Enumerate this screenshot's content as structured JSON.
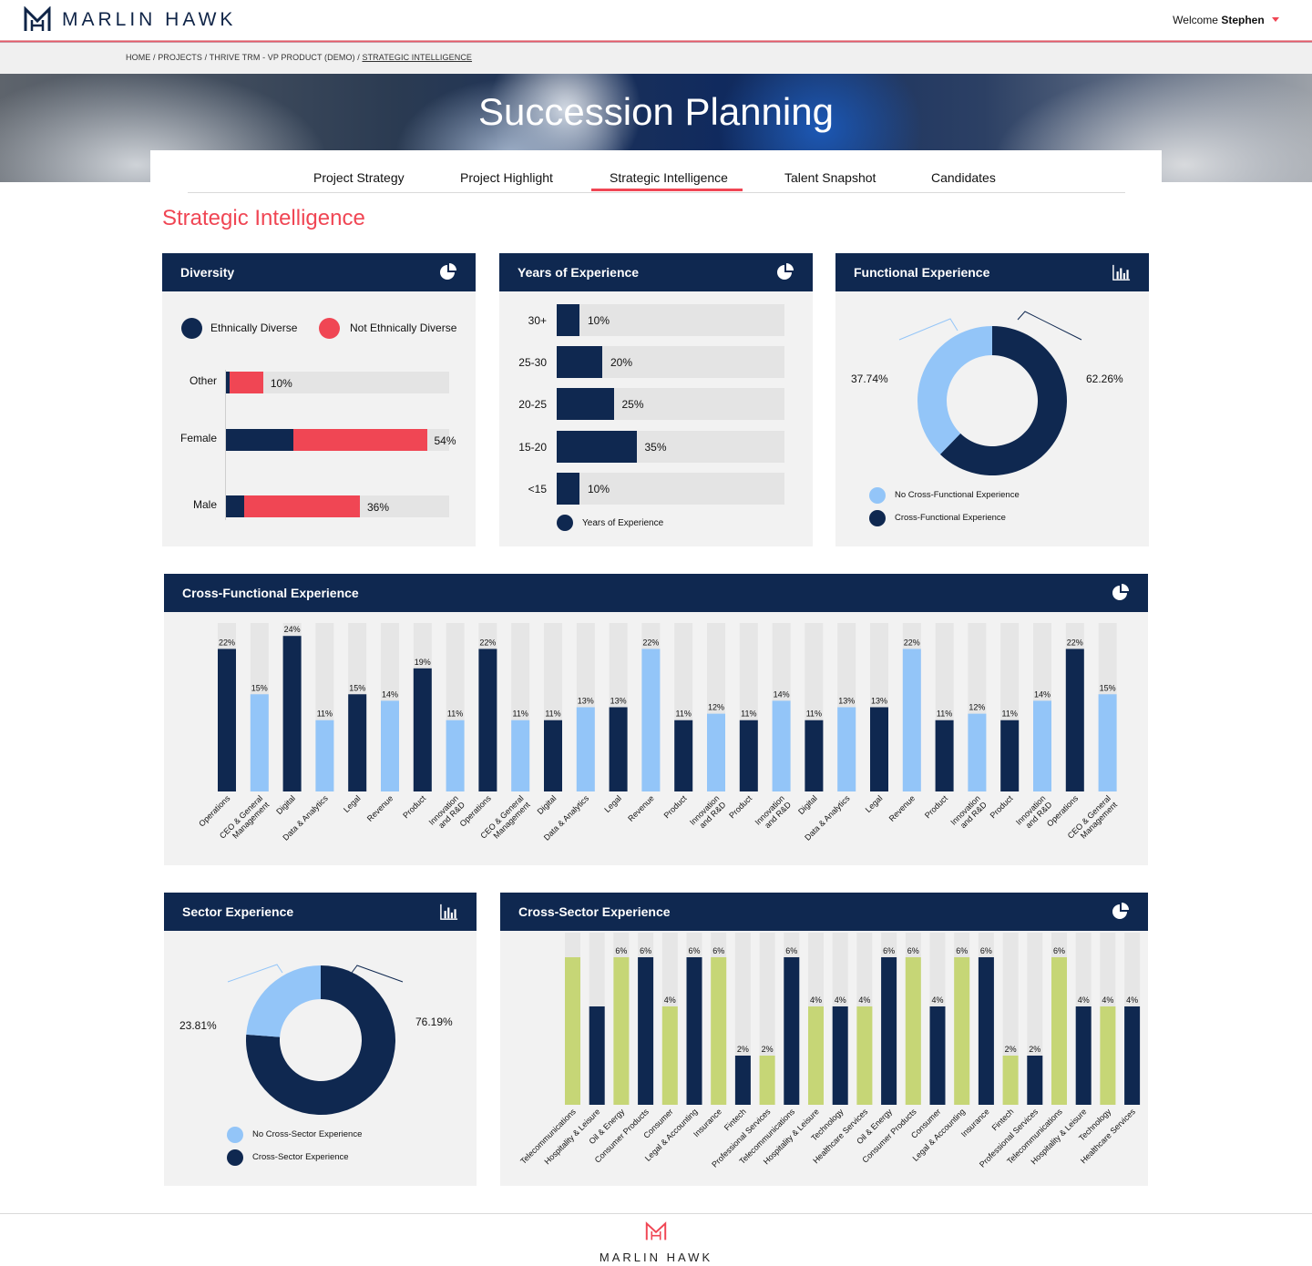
{
  "brand": {
    "name": "MARLIN HAWK",
    "footer_name": "MARLIN HAWK"
  },
  "user": {
    "welcome_prefix": "Welcome",
    "name": "Stephen"
  },
  "breadcrumb": {
    "trail": "HOME / PROJECTS / THRIVE TRM - VP PRODUCT (DEMO) / ",
    "current": "STRATEGIC INTELLIGENCE"
  },
  "hero": {
    "title": "Succession Planning"
  },
  "tabs": [
    {
      "label": "Project Strategy",
      "active": false
    },
    {
      "label": "Project Highlight",
      "active": false
    },
    {
      "label": "Strategic Intelligence",
      "active": true
    },
    {
      "label": "Talent Snapshot",
      "active": false
    },
    {
      "label": "Candidates",
      "active": false
    }
  ],
  "page_title": "Strategic Intelligence",
  "colors": {
    "navy": "#0f2850",
    "red": "#f04654",
    "light_blue": "#93c5f8",
    "green": "#c6d676",
    "track": "#e4e4e4"
  },
  "diversity": {
    "title": "Diversity",
    "icon": "pie-chart-icon",
    "legend": [
      "Ethnically Diverse",
      "Not Ethnically Diverse"
    ],
    "rows": [
      {
        "label": "Other",
        "diverse": 1,
        "not_diverse": 9,
        "total_label": "10%"
      },
      {
        "label": "Female",
        "diverse": 18,
        "not_diverse": 36,
        "total_label": "54%"
      },
      {
        "label": "Male",
        "diverse": 5,
        "not_diverse": 31,
        "total_label": "36%"
      }
    ]
  },
  "years": {
    "title": "Years of Experience",
    "icon": "pie-chart-icon",
    "legend": "Years of Experience",
    "rows": [
      {
        "label": "30+",
        "value": 10,
        "value_label": "10%"
      },
      {
        "label": "25-30",
        "value": 20,
        "value_label": "20%"
      },
      {
        "label": "20-25",
        "value": 25,
        "value_label": "25%"
      },
      {
        "label": "15-20",
        "value": 35,
        "value_label": "35%"
      },
      {
        "label": "<15",
        "value": 10,
        "value_label": "10%"
      }
    ]
  },
  "functional": {
    "title": "Functional Experience",
    "icon": "bar-chart-icon",
    "slices": [
      {
        "label": "No Cross-Functional Experience",
        "value": 37.74,
        "value_label": "37.74%"
      },
      {
        "label": "Cross-Functional Experience",
        "value": 62.26,
        "value_label": "62.26%"
      }
    ]
  },
  "cross_functional": {
    "title": "Cross-Functional Experience",
    "icon": "pie-chart-icon",
    "bars": [
      {
        "label": "Operations",
        "value": 22,
        "value_label": "22%",
        "color": "navy"
      },
      {
        "label": "CEO & General|Management",
        "value": 15,
        "value_label": "15%",
        "color": "light_blue"
      },
      {
        "label": "Digital",
        "value": 24,
        "value_label": "24%",
        "color": "navy"
      },
      {
        "label": "Data & Analytics",
        "value": 11,
        "value_label": "11%",
        "color": "light_blue"
      },
      {
        "label": "Legal",
        "value": 15,
        "value_label": "15%",
        "color": "navy"
      },
      {
        "label": "Revenue",
        "value": 14,
        "value_label": "14%",
        "color": "light_blue"
      },
      {
        "label": "Product",
        "value": 19,
        "value_label": "19%",
        "color": "navy"
      },
      {
        "label": "Innovation|and R&D",
        "value": 11,
        "value_label": "11%",
        "color": "light_blue"
      },
      {
        "label": "Operations",
        "value": 22,
        "value_label": "22%",
        "color": "navy"
      },
      {
        "label": "CEO & General|Management",
        "value": 11,
        "value_label": "11%",
        "color": "light_blue"
      },
      {
        "label": "Digital",
        "value": 11,
        "value_label": "11%",
        "color": "navy"
      },
      {
        "label": "Data & Analytics",
        "value": 13,
        "value_label": "13%",
        "color": "light_blue"
      },
      {
        "label": "Legal",
        "value": 13,
        "value_label": "13%",
        "color": "navy"
      },
      {
        "label": "Revenue",
        "value": 22,
        "value_label": "22%",
        "color": "light_blue"
      },
      {
        "label": "Product",
        "value": 11,
        "value_label": "11%",
        "color": "navy"
      },
      {
        "label": "Innovation|and R&D",
        "value": 12,
        "value_label": "12%",
        "color": "light_blue"
      },
      {
        "label": "Product",
        "value": 11,
        "value_label": "11%",
        "color": "navy"
      },
      {
        "label": "Innovation|and R&D",
        "value": 14,
        "value_label": "14%",
        "color": "light_blue"
      },
      {
        "label": "Digital",
        "value": 11,
        "value_label": "11%",
        "color": "navy"
      },
      {
        "label": "Data & Analytics",
        "value": 13,
        "value_label": "13%",
        "color": "light_blue"
      },
      {
        "label": "Legal",
        "value": 13,
        "value_label": "13%",
        "color": "navy"
      },
      {
        "label": "Revenue",
        "value": 22,
        "value_label": "22%",
        "color": "light_blue"
      },
      {
        "label": "Product",
        "value": 11,
        "value_label": "11%",
        "color": "navy"
      },
      {
        "label": "Innovation|and R&D",
        "value": 12,
        "value_label": "12%",
        "color": "light_blue"
      },
      {
        "label": "Product",
        "value": 11,
        "value_label": "11%",
        "color": "navy"
      },
      {
        "label": "Innovation|and R&D",
        "value": 14,
        "value_label": "14%",
        "color": "light_blue"
      },
      {
        "label": "Operations",
        "value": 22,
        "value_label": "22%",
        "color": "navy"
      },
      {
        "label": "CEO & General|Management",
        "value": 15,
        "value_label": "15%",
        "color": "light_blue"
      }
    ]
  },
  "sector": {
    "title": "Sector Experience",
    "icon": "bar-chart-icon",
    "slices": [
      {
        "label": "No Cross-Sector Experience",
        "value": 23.81,
        "value_label": "23.81%"
      },
      {
        "label": "Cross-Sector Experience",
        "value": 76.19,
        "value_label": "76.19%"
      }
    ]
  },
  "cross_sector": {
    "title": "Cross-Sector Experience",
    "icon": "pie-chart-icon",
    "bars": [
      {
        "label": "Telecommunications",
        "value": 6,
        "value_label": "",
        "color": "green"
      },
      {
        "label": "Hospitality & Leisure",
        "value": 4,
        "value_label": "",
        "color": "navy"
      },
      {
        "label": "Oil & Energy",
        "value": 6,
        "value_label": "6%",
        "color": "green"
      },
      {
        "label": "Consumer Products",
        "value": 6,
        "value_label": "6%",
        "color": "navy"
      },
      {
        "label": "Consumer",
        "value": 4,
        "value_label": "4%",
        "color": "green"
      },
      {
        "label": "Legal & Accounting",
        "value": 6,
        "value_label": "6%",
        "color": "navy"
      },
      {
        "label": "Insurance",
        "value": 6,
        "value_label": "6%",
        "color": "green"
      },
      {
        "label": "Fintech",
        "value": 2,
        "value_label": "2%",
        "color": "navy"
      },
      {
        "label": "Professional Services",
        "value": 2,
        "value_label": "2%",
        "color": "green"
      },
      {
        "label": "Telecommunications",
        "value": 6,
        "value_label": "6%",
        "color": "navy"
      },
      {
        "label": "Hospitality & Leisure",
        "value": 4,
        "value_label": "4%",
        "color": "green"
      },
      {
        "label": "Technology",
        "value": 4,
        "value_label": "4%",
        "color": "navy"
      },
      {
        "label": "Healthcare Services",
        "value": 4,
        "value_label": "4%",
        "color": "green"
      },
      {
        "label": "Oil & Energy",
        "value": 6,
        "value_label": "6%",
        "color": "navy"
      },
      {
        "label": "Consumer Products",
        "value": 6,
        "value_label": "6%",
        "color": "green"
      },
      {
        "label": "Consumer",
        "value": 4,
        "value_label": "4%",
        "color": "navy"
      },
      {
        "label": "Legal & Accounting",
        "value": 6,
        "value_label": "6%",
        "color": "green"
      },
      {
        "label": "Insurance",
        "value": 6,
        "value_label": "6%",
        "color": "navy"
      },
      {
        "label": "Fintech",
        "value": 2,
        "value_label": "2%",
        "color": "green"
      },
      {
        "label": "Professional Services",
        "value": 2,
        "value_label": "2%",
        "color": "navy"
      },
      {
        "label": "Telecommunications",
        "value": 6,
        "value_label": "6%",
        "color": "green"
      },
      {
        "label": "Hospitality & Leisure",
        "value": 4,
        "value_label": "4%",
        "color": "navy"
      },
      {
        "label": "Technology",
        "value": 4,
        "value_label": "4%",
        "color": "green"
      },
      {
        "label": "Healthcare Services",
        "value": 4,
        "value_label": "4%",
        "color": "navy"
      }
    ]
  },
  "chart_data": [
    {
      "type": "bar",
      "title": "Diversity",
      "categories": [
        "Other",
        "Female",
        "Male"
      ],
      "series": [
        {
          "name": "Ethnically Diverse",
          "values": [
            1,
            18,
            5
          ]
        },
        {
          "name": "Not Ethnically Diverse",
          "values": [
            9,
            36,
            31
          ]
        }
      ],
      "totals": [
        10,
        54,
        36
      ],
      "legend": "top"
    },
    {
      "type": "bar",
      "title": "Years of Experience",
      "categories": [
        "30+",
        "25-30",
        "20-25",
        "15-20",
        "<15"
      ],
      "series": [
        {
          "name": "Years of Experience",
          "values": [
            10,
            20,
            25,
            35,
            10
          ]
        }
      ],
      "legend": "bottom"
    },
    {
      "type": "pie",
      "title": "Functional Experience",
      "categories": [
        "No Cross-Functional Experience",
        "Cross-Functional Experience"
      ],
      "values": [
        37.74,
        62.26
      ],
      "legend": "bottom"
    },
    {
      "type": "bar",
      "title": "Cross-Functional Experience",
      "categories": [
        "Operations",
        "CEO & General Management",
        "Digital",
        "Data & Analytics",
        "Legal",
        "Revenue",
        "Product",
        "Innovation and R&D",
        "Operations",
        "CEO & General Management",
        "Digital",
        "Data & Analytics",
        "Legal",
        "Revenue",
        "Product",
        "Innovation and R&D",
        "Product",
        "Innovation and R&D",
        "Digital",
        "Data & Analytics",
        "Legal",
        "Revenue",
        "Product",
        "Innovation and R&D",
        "Product",
        "Innovation and R&D",
        "Operations",
        "CEO & General Management"
      ],
      "values": [
        22,
        15,
        24,
        11,
        15,
        14,
        19,
        11,
        22,
        11,
        11,
        13,
        13,
        22,
        11,
        12,
        11,
        14,
        11,
        13,
        13,
        22,
        11,
        12,
        11,
        14,
        22,
        15
      ],
      "ylim": [
        0,
        26
      ]
    },
    {
      "type": "pie",
      "title": "Sector Experience",
      "categories": [
        "No Cross-Sector Experience",
        "Cross-Sector Experience"
      ],
      "values": [
        23.81,
        76.19
      ],
      "legend": "bottom"
    },
    {
      "type": "bar",
      "title": "Cross-Sector Experience",
      "categories": [
        "Telecommunications",
        "Hospitality & Leisure",
        "Oil & Energy",
        "Consumer Products",
        "Consumer",
        "Legal & Accounting",
        "Insurance",
        "Fintech",
        "Professional Services",
        "Telecommunications",
        "Hospitality & Leisure",
        "Technology",
        "Healthcare Services",
        "Oil & Energy",
        "Consumer Products",
        "Consumer",
        "Legal & Accounting",
        "Insurance",
        "Fintech",
        "Professional Services",
        "Telecommunications",
        "Hospitality & Leisure",
        "Technology",
        "Healthcare Services"
      ],
      "values": [
        6,
        4,
        6,
        6,
        4,
        6,
        6,
        2,
        2,
        6,
        4,
        4,
        4,
        6,
        6,
        4,
        6,
        6,
        2,
        2,
        6,
        4,
        4,
        4
      ],
      "ylim": [
        0,
        7
      ]
    }
  ]
}
